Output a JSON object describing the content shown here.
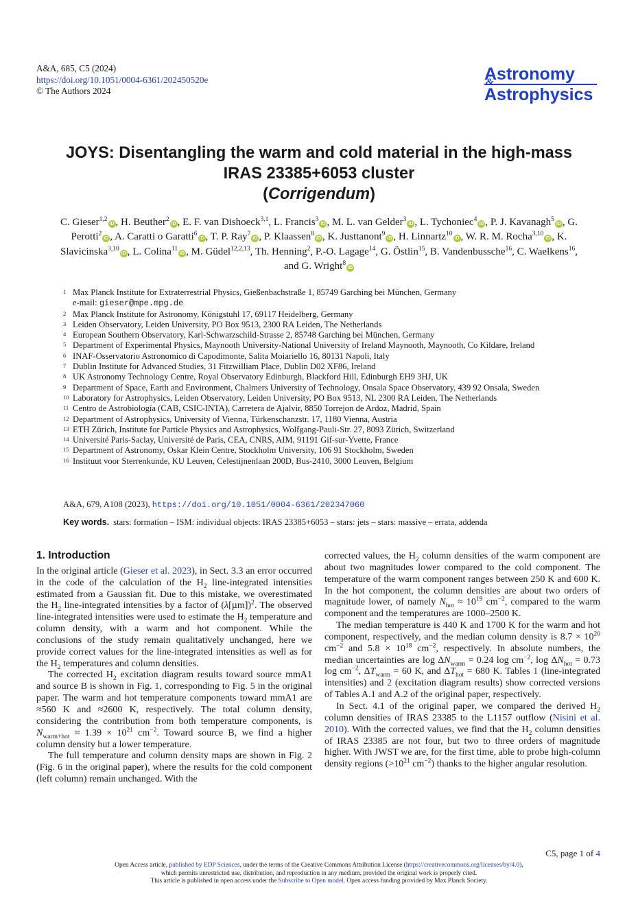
{
  "header": {
    "journal_ref": "A&A, 685, C5  (2024)",
    "doi": "https://doi.org/10.1051/0004-6361/202450520e",
    "copyright": "© The Authors 2024"
  },
  "logo": {
    "line1": "Astronomy",
    "amp": "&",
    "line2": "Astrophysics"
  },
  "title": {
    "line1": "JOYS: Disentangling the warm and cold material in the high-mass",
    "line2": "IRAS 23385+6053 cluster",
    "open": "(",
    "sub": "Corrigendum",
    "close": ")"
  },
  "authors": [
    {
      "name": "C. Gieser",
      "sup": "1,2",
      "orcid": true,
      "sep": ","
    },
    {
      "name": "H. Beuther",
      "sup": "2",
      "orcid": true,
      "sep": ","
    },
    {
      "name": "E. F. van Dishoeck",
      "sup": "3,1",
      "orcid": false,
      "sep": ","
    },
    {
      "name": "L. Francis",
      "sup": "3",
      "orcid": true,
      "sep": ","
    },
    {
      "name": "M. L. van Gelder",
      "sup": "3",
      "orcid": true,
      "sep": ","
    },
    {
      "name": "L. Tychoniec",
      "sup": "4",
      "orcid": true,
      "sep": ","
    },
    {
      "name": "P. J. Kavanagh",
      "sup": "5",
      "orcid": true,
      "sep": ","
    },
    {
      "name": "G. Perotti",
      "sup": "2",
      "orcid": true,
      "sep": ","
    },
    {
      "name": "A. Caratti o Garatti",
      "sup": "6",
      "orcid": true,
      "sep": ","
    },
    {
      "name": "T. P. Ray",
      "sup": "7",
      "orcid": true,
      "sep": ","
    },
    {
      "name": "P. Klaassen",
      "sup": "8",
      "orcid": true,
      "sep": ","
    },
    {
      "name": "K. Justtanont",
      "sup": "9",
      "orcid": true,
      "sep": ","
    },
    {
      "name": "H. Linnartz",
      "sup": "10",
      "orcid": true,
      "sep": ","
    },
    {
      "name": "W. R. M. Rocha",
      "sup": "3,10",
      "orcid": true,
      "sep": ","
    },
    {
      "name": "K. Slavicinska",
      "sup": "3,10",
      "orcid": true,
      "sep": ","
    },
    {
      "name": "L. Colina",
      "sup": "11",
      "orcid": true,
      "sep": ","
    },
    {
      "name": "M. Güdel",
      "sup": "12,2,13",
      "orcid": false,
      "sep": ","
    },
    {
      "name": "Th. Henning",
      "sup": "2",
      "orcid": false,
      "sep": ","
    },
    {
      "name": "P.-O. Lagage",
      "sup": "14",
      "orcid": false,
      "sep": ","
    },
    {
      "name": "G. Östlin",
      "sup": "15",
      "orcid": false,
      "sep": ","
    },
    {
      "name": "B. Vandenbussche",
      "sup": "16",
      "orcid": false,
      "sep": ","
    },
    {
      "name": "C. Waelkens",
      "sup": "16",
      "orcid": false,
      "sep": ", and"
    },
    {
      "name": "G. Wright",
      "sup": "8",
      "orcid": true,
      "sep": ""
    }
  ],
  "affiliations": [
    {
      "n": "1",
      "text": "Max Planck Institute for Extraterrestrial Physics, Gießenbachstraße 1, 85749 Garching bei München, Germany",
      "email_label": "e-mail: ",
      "email": "gieser@mpe.mpg.de"
    },
    {
      "n": "2",
      "text": "Max Planck Institute for Astronomy, Königstuhl 17, 69117 Heidelberg, Germany"
    },
    {
      "n": "3",
      "text": "Leiden Observatory, Leiden University, PO Box 9513, 2300 RA Leiden, The Netherlands"
    },
    {
      "n": "4",
      "text": "European Southern Observatory, Karl-Schwarzschild-Strasse 2, 85748 Garching bei München, Germany"
    },
    {
      "n": "5",
      "text": "Department of Experimental Physics, Maynooth University-National University of Ireland Maynooth, Maynooth, Co Kildare, Ireland"
    },
    {
      "n": "6",
      "text": "INAF-Osservatorio Astronomico di Capodimonte, Salita Moiariello 16, 80131 Napoli, Italy"
    },
    {
      "n": "7",
      "text": "Dublin Institute for Advanced Studies, 31 Fitzwilliam Place, Dublin D02 XF86, Ireland"
    },
    {
      "n": "8",
      "text": "UK Astronomy Technology Centre, Royal Observatory Edinburgh, Blackford Hill, Edinburgh EH9 3HJ, UK"
    },
    {
      "n": "9",
      "text": "Department of Space, Earth and Environment, Chalmers University of Technology, Onsala Space Observatory, 439 92 Onsala, Sweden"
    },
    {
      "n": "10",
      "text": "Laboratory for Astrophysics, Leiden Observatory, Leiden University, PO Box 9513, NL 2300 RA Leiden, The Netherlands"
    },
    {
      "n": "11",
      "text": "Centro de Astrobiología (CAB, CSIC-INTA), Carretera de Ajalvir, 8850 Torrejon de Ardoz, Madrid, Spain"
    },
    {
      "n": "12",
      "text": "Department of Astrophysics, University of Vienna, Türkenschanzstr. 17, 1180 Vienna, Austria"
    },
    {
      "n": "13",
      "text": "ETH Zürich, Institute for Particle Physics and Astrophysics, Wolfgang-Pauli-Str. 27, 8093 Zürich, Switzerland"
    },
    {
      "n": "14",
      "text": "Université Paris-Saclay, Université de Paris, CEA, CNRS, AIM, 91191 Gif-sur-Yvette, France"
    },
    {
      "n": "15",
      "text": "Department of Astronomy, Oskar Klein Centre, Stockholm University, 106 91 Stockholm, Sweden"
    },
    {
      "n": "16",
      "text": "Instituut voor Sterrenkunde, KU Leuven, Celestijnenlaan 200D, Bus-2410, 3000 Leuven, Belgium"
    }
  ],
  "original_ref": {
    "text": "A&A, 679, A108 (2023), ",
    "doi": "https://doi.org/10.1051/0004-6361/202347060"
  },
  "keywords": {
    "label": "Key words.",
    "text": "stars: formation – ISM: individual objects: IRAS 23385+6053 – stars: jets – stars: massive – errata, addenda"
  },
  "section": {
    "title": "1. Introduction"
  },
  "links": {
    "gieser2023": "Gieser et al. 2023",
    "fig1": "1",
    "fig2": "2",
    "tab1": "1",
    "tab2": "2",
    "nisini": "Nisini et al. 2010"
  },
  "footer": {
    "page": "C5, page 1 of ",
    "page_total": "4",
    "line1a": "Open Access article, ",
    "line1_link": "published by EDP Sciences",
    "line1b": ", under the terms of the Creative Commons Attribution License (",
    "license_url": "https://creativecommons.org/licenses/by/4.0",
    "line1c": "),",
    "line2": "which permits unrestricted use, distribution, and reproduction in any medium, provided the original work is properly cited.",
    "line3a": "This article is published in open access under the ",
    "line3_link": "Subscribe to Open model",
    "line3b": ". Open access funding provided by Max Planck Society."
  }
}
